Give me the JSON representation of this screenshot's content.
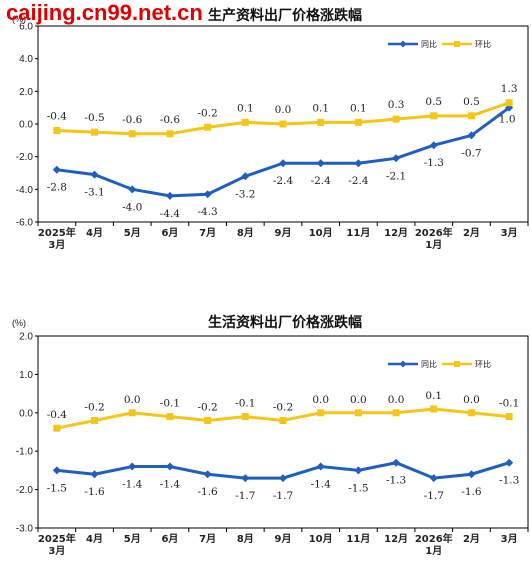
{
  "watermark": "caijing.cn99.net.cn",
  "chart_data": [
    {
      "type": "line",
      "title": "生产资料出厂价格涨跌幅",
      "unit": "(%)",
      "categories": [
        "2025年\n3月",
        "4月",
        "5月",
        "6月",
        "7月",
        "8月",
        "9月",
        "10月",
        "11月",
        "12月",
        "2026年\n1月",
        "2月",
        "3月"
      ],
      "ylim": [
        -6.0,
        6.0
      ],
      "yticks": [
        "6.0",
        "4.0",
        "2.0",
        "0.0",
        "-2.0",
        "-4.0",
        "-6.0"
      ],
      "ytick_values": [
        6,
        4,
        2,
        0,
        -2,
        -4,
        -6
      ],
      "legend_position": "top-right",
      "grid": false,
      "series": [
        {
          "name": "同比",
          "color": "#1f5fbf",
          "marker": "diamond",
          "values": [
            -2.8,
            -3.1,
            -4.0,
            -4.4,
            -4.3,
            -3.2,
            -2.4,
            -2.4,
            -2.4,
            -2.1,
            -1.3,
            -0.7,
            1.0
          ],
          "labels": [
            "-2.8",
            "-3.1",
            "-4.0",
            "-4.4",
            "-4.3",
            "-3.2",
            "-2.4",
            "-2.4",
            "-2.4",
            "-2.1",
            "-1.3",
            "-0.7",
            "1.0"
          ]
        },
        {
          "name": "环比",
          "color": "#f5c518",
          "marker": "square",
          "values": [
            -0.4,
            -0.5,
            -0.6,
            -0.6,
            -0.2,
            0.1,
            0.0,
            0.1,
            0.1,
            0.3,
            0.5,
            0.5,
            1.3
          ],
          "labels": [
            "-0.4",
            "-0.5",
            "-0.6",
            "-0.6",
            "-0.2",
            "0.1",
            "0.0",
            "0.1",
            "0.1",
            "0.3",
            "0.5",
            "0.5",
            "1.3"
          ]
        }
      ]
    },
    {
      "type": "line",
      "title": "生活资料出厂价格涨跌幅",
      "unit": "(%)",
      "categories": [
        "2025年\n3月",
        "4月",
        "5月",
        "6月",
        "7月",
        "8月",
        "9月",
        "10月",
        "11月",
        "12月",
        "2026年\n1月",
        "2月",
        "3月"
      ],
      "ylim": [
        -3.0,
        2.0
      ],
      "yticks": [
        "2.0",
        "1.0",
        "0.0",
        "-1.0",
        "-2.0",
        "-3.0"
      ],
      "ytick_values": [
        2,
        1,
        0,
        -1,
        -2,
        -3
      ],
      "legend_position": "top-right",
      "grid": false,
      "series": [
        {
          "name": "同比",
          "color": "#1f5fbf",
          "marker": "diamond",
          "values": [
            -1.5,
            -1.6,
            -1.4,
            -1.4,
            -1.6,
            -1.7,
            -1.7,
            -1.4,
            -1.5,
            -1.3,
            -1.7,
            -1.6,
            -1.3
          ],
          "labels": [
            "-1.5",
            "-1.6",
            "-1.4",
            "-1.4",
            "-1.6",
            "-1.7",
            "-1.7",
            "-1.4",
            "-1.5",
            "-1.3",
            "-1.7",
            "-1.6",
            "-1.3"
          ]
        },
        {
          "name": "环比",
          "color": "#f5c518",
          "marker": "square",
          "values": [
            -0.4,
            -0.2,
            0.0,
            -0.1,
            -0.2,
            -0.1,
            -0.2,
            0.0,
            0.0,
            0.0,
            0.1,
            0.0,
            -0.1
          ],
          "labels": [
            "-0.4",
            "-0.2",
            "0.0",
            "-0.1",
            "-0.2",
            "-0.1",
            "-0.2",
            "0.0",
            "0.0",
            "0.0",
            "0.1",
            "0.0",
            "-0.1"
          ]
        }
      ]
    }
  ]
}
